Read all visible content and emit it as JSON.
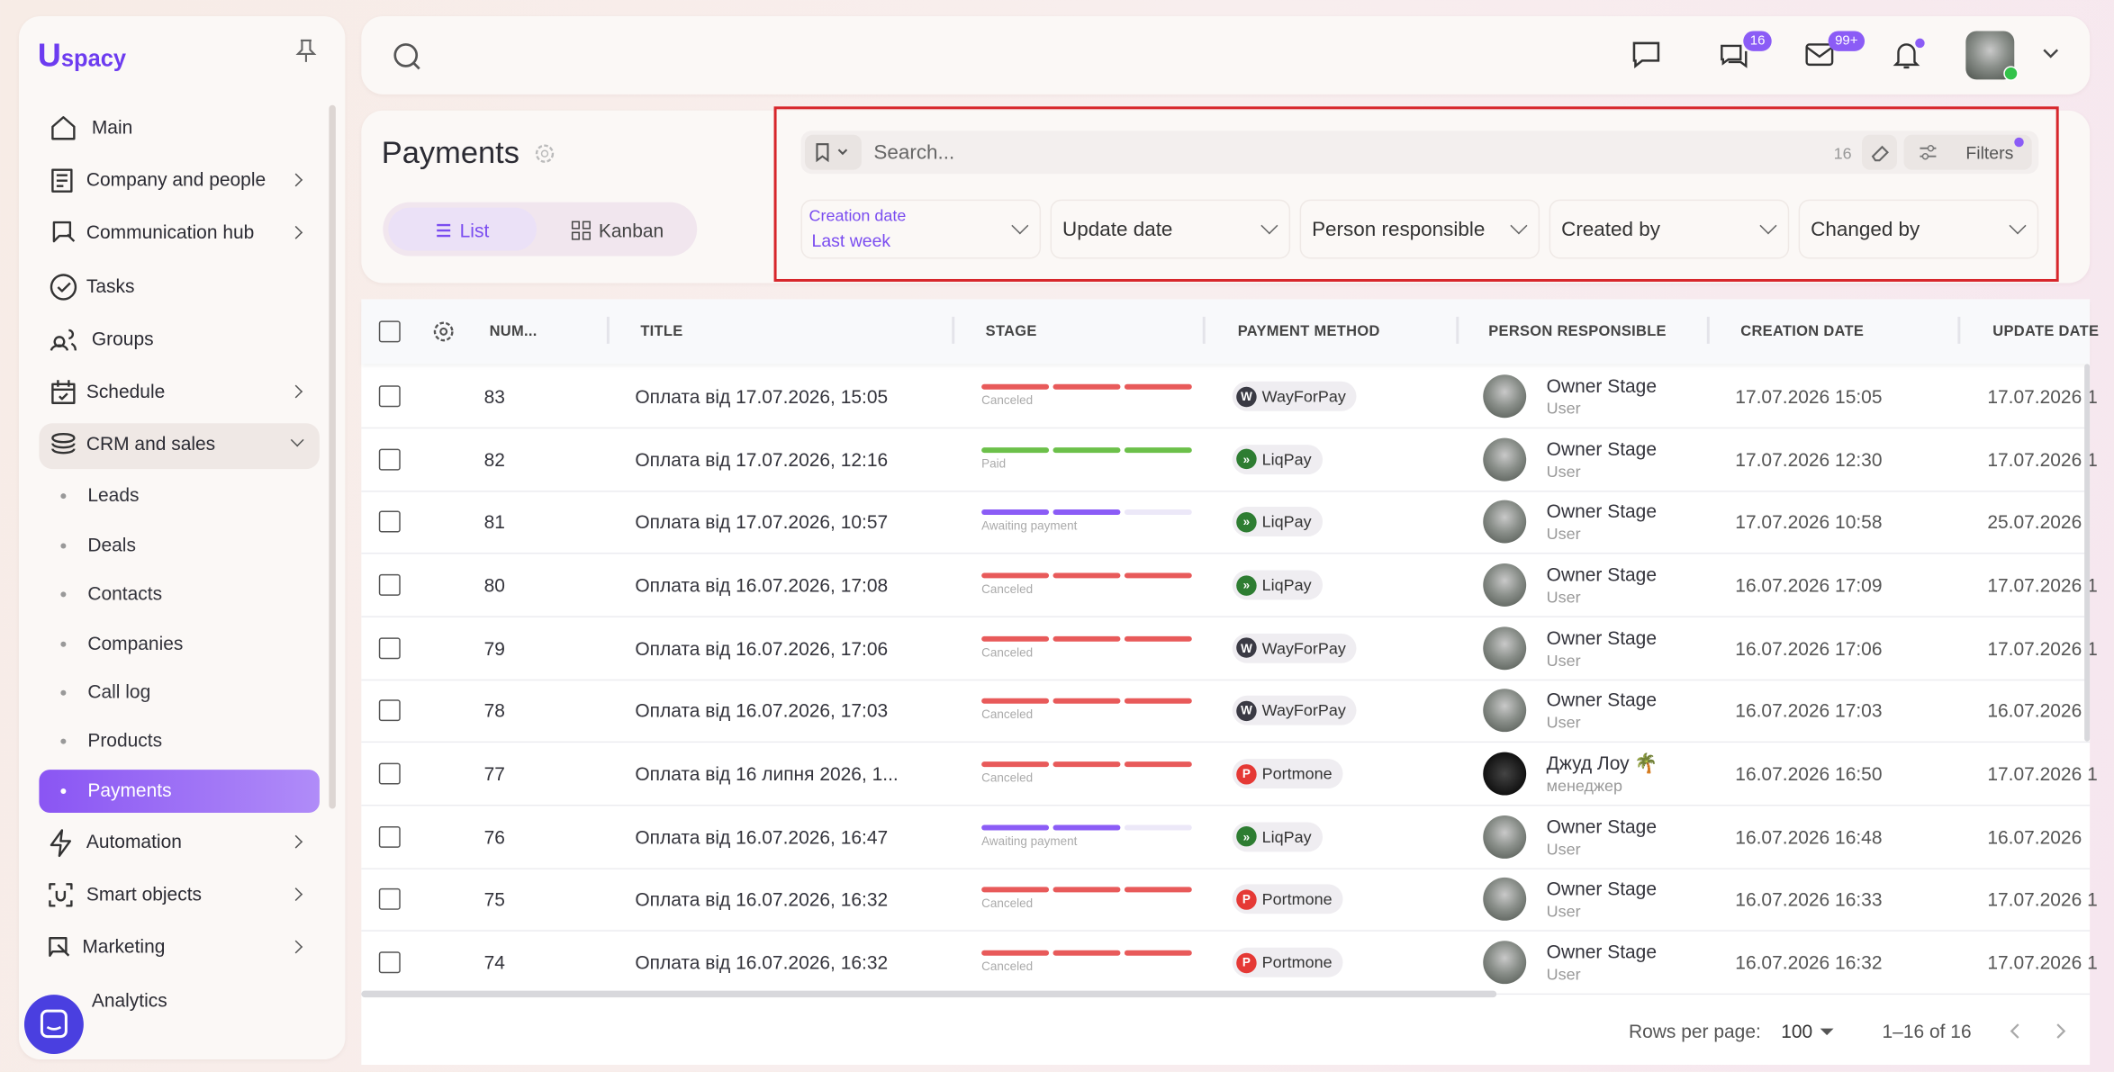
{
  "logo": {
    "letter": "U",
    "text": "spacy"
  },
  "sidebar": {
    "items": [
      "Main",
      "Company and people",
      "Communication hub",
      "Tasks",
      "Groups",
      "Schedule",
      "CRM and sales"
    ],
    "crm_items": [
      "Leads",
      "Deals",
      "Contacts",
      "Companies",
      "Call log",
      "Products",
      "Payments"
    ],
    "bottom_items": [
      "Automation",
      "Smart objects",
      "Marketing",
      "Analytics"
    ]
  },
  "topbar": {
    "chat_badge": "16",
    "mail_badge": "99+"
  },
  "header": {
    "title": "Payments",
    "tabs": [
      "List",
      "Kanban"
    ]
  },
  "search": {
    "placeholder": "Search...",
    "count": "16",
    "filters_button": "Filters"
  },
  "filters": [
    {
      "label": "Creation date",
      "value": "Last week"
    },
    {
      "label": "Update date"
    },
    {
      "label": "Person responsible"
    },
    {
      "label": "Created by"
    },
    {
      "label": "Changed by"
    }
  ],
  "table": {
    "columns": [
      "NUM...",
      "TITLE",
      "STAGE",
      "PAYMENT METHOD",
      "PERSON RESPONSIBLE",
      "CREATION DATE",
      "UPDATE DATE"
    ],
    "rows": [
      {
        "num": "83",
        "title": "Оплата від 17.07.2026, 15:05",
        "stage": "Canceled",
        "stage_colors": [
          "#e85a5a",
          "#e85a5a",
          "#e85a5a"
        ],
        "method": "WayForPay",
        "icon": "W",
        "icon_color": "#3a3a44",
        "person": "Owner Stage",
        "role": "User",
        "created": "17.07.2026 15:05",
        "updated": "17.07.2026 1"
      },
      {
        "num": "82",
        "title": "Оплата від 17.07.2026, 12:16",
        "stage": "Paid",
        "stage_colors": [
          "#6cc04a",
          "#6cc04a",
          "#6cc04a"
        ],
        "method": "LiqPay",
        "icon": "»",
        "icon_color": "#2e7d32",
        "person": "Owner Stage",
        "role": "User",
        "created": "17.07.2026 12:30",
        "updated": "17.07.2026 1"
      },
      {
        "num": "81",
        "title": "Оплата від 17.07.2026, 10:57",
        "stage": "Awaiting payment",
        "stage_colors": [
          "#8b5cf6",
          "#8b5cf6",
          "#ece8f8"
        ],
        "method": "LiqPay",
        "icon": "»",
        "icon_color": "#2e7d32",
        "person": "Owner Stage",
        "role": "User",
        "created": "17.07.2026 10:58",
        "updated": "25.07.2026"
      },
      {
        "num": "80",
        "title": "Оплата від 16.07.2026, 17:08",
        "stage": "Canceled",
        "stage_colors": [
          "#e85a5a",
          "#e85a5a",
          "#e85a5a"
        ],
        "method": "LiqPay",
        "icon": "»",
        "icon_color": "#2e7d32",
        "person": "Owner Stage",
        "role": "User",
        "created": "16.07.2026 17:09",
        "updated": "17.07.2026 1"
      },
      {
        "num": "79",
        "title": "Оплата від 16.07.2026, 17:06",
        "stage": "Canceled",
        "stage_colors": [
          "#e85a5a",
          "#e85a5a",
          "#e85a5a"
        ],
        "method": "WayForPay",
        "icon": "W",
        "icon_color": "#3a3a44",
        "person": "Owner Stage",
        "role": "User",
        "created": "16.07.2026 17:06",
        "updated": "17.07.2026 1"
      },
      {
        "num": "78",
        "title": "Оплата від 16.07.2026, 17:03",
        "stage": "Canceled",
        "stage_colors": [
          "#e85a5a",
          "#e85a5a",
          "#e85a5a"
        ],
        "method": "WayForPay",
        "icon": "W",
        "icon_color": "#3a3a44",
        "person": "Owner Stage",
        "role": "User",
        "created": "16.07.2026 17:03",
        "updated": "16.07.2026"
      },
      {
        "num": "77",
        "title": "Оплата від 16 липня 2026, 1...",
        "stage": "Canceled",
        "stage_colors": [
          "#e85a5a",
          "#e85a5a",
          "#e85a5a"
        ],
        "method": "Portmone",
        "icon": "P",
        "icon_color": "#e53935",
        "person": "Джуд Лоу 🌴",
        "role": "менеджер",
        "created": "16.07.2026 16:50",
        "updated": "17.07.2026 1"
      },
      {
        "num": "76",
        "title": "Оплата від 16.07.2026, 16:47",
        "stage": "Awaiting payment",
        "stage_colors": [
          "#8b5cf6",
          "#8b5cf6",
          "#ece8f8"
        ],
        "method": "LiqPay",
        "icon": "»",
        "icon_color": "#2e7d32",
        "person": "Owner Stage",
        "role": "User",
        "created": "16.07.2026 16:48",
        "updated": "16.07.2026"
      },
      {
        "num": "75",
        "title": "Оплата від 16.07.2026, 16:32",
        "stage": "Canceled",
        "stage_colors": [
          "#e85a5a",
          "#e85a5a",
          "#e85a5a"
        ],
        "method": "Portmone",
        "icon": "P",
        "icon_color": "#e53935",
        "person": "Owner Stage",
        "role": "User",
        "created": "16.07.2026 16:33",
        "updated": "17.07.2026 1"
      },
      {
        "num": "74",
        "title": "Оплата від 16.07.2026, 16:32",
        "stage": "Canceled",
        "stage_colors": [
          "#e85a5a",
          "#e85a5a",
          "#e85a5a"
        ],
        "method": "Portmone",
        "icon": "P",
        "icon_color": "#e53935",
        "person": "Owner Stage",
        "role": "User",
        "created": "16.07.2026 16:32",
        "updated": "17.07.2026 1"
      }
    ]
  },
  "footer": {
    "rows_label": "Rows per page:",
    "rows_value": "100",
    "range": "1–16 of 16"
  }
}
